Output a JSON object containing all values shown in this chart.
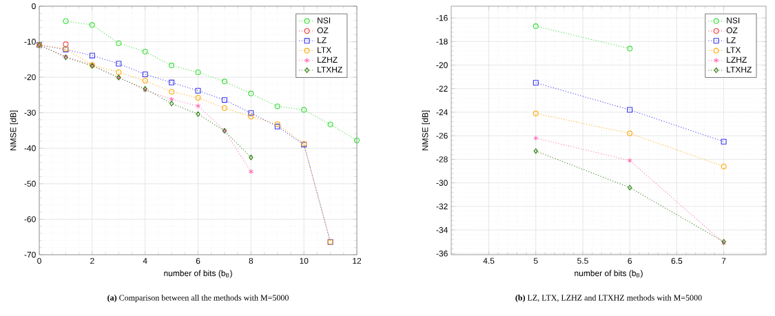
{
  "chart_data": [
    {
      "type": "line",
      "title": "**(a)** Comparison between all the methods with M=5000",
      "xlabel": "number of bits (b$_{B}$)",
      "ylabel": "NMSE [dB]",
      "x": [
        0,
        1,
        2,
        3,
        4,
        5,
        6,
        7,
        8,
        9,
        10,
        11,
        12
      ],
      "series": [
        {
          "name": "NSI",
          "color": "#33dd33",
          "marker": "circle",
          "values": [
            null,
            -4.2,
            -5.3,
            -10.4,
            -12.8,
            -16.7,
            -18.6,
            -21.2,
            -24.6,
            -28.2,
            -29.2,
            -33.3,
            -37.8
          ]
        },
        {
          "name": "OZ",
          "color": "#ee3333",
          "marker": "circle",
          "values": [
            null,
            -10.7,
            null,
            null,
            null,
            null,
            null,
            null,
            null,
            null,
            null,
            null,
            null
          ]
        },
        {
          "name": "LZ",
          "color": "#3333ee",
          "marker": "square",
          "values": [
            -10.9,
            -12.2,
            -13.9,
            -16.2,
            -19.2,
            -21.5,
            -23.8,
            -26.4,
            -30.1,
            -33.9,
            -39.0,
            -66.4,
            null
          ]
        },
        {
          "name": "LTX",
          "color": "#ffa500",
          "marker": "circle",
          "values": [
            -10.9,
            -12.0,
            -16.6,
            -18.6,
            -21.0,
            -24.1,
            -25.8,
            -28.7,
            -31.1,
            -33.2,
            -38.8,
            -66.4,
            null
          ]
        },
        {
          "name": "LZHZ",
          "color": "#ff69b4",
          "marker": "cross",
          "values": [
            -10.9,
            -14.2,
            -16.6,
            -20.1,
            -23.6,
            -26.2,
            -28.1,
            -35.0,
            -46.6,
            null,
            null,
            null,
            null
          ]
        },
        {
          "name": "LTXHZ",
          "color": "#227700",
          "marker": "diamond",
          "values": [
            -10.9,
            -14.4,
            -16.8,
            -20.1,
            -23.3,
            -27.4,
            -30.4,
            -35.1,
            -42.6,
            null,
            null,
            null,
            null
          ]
        }
      ],
      "xlim": [
        0,
        12
      ],
      "ylim": [
        -70,
        0
      ],
      "xticks": [
        0,
        2,
        4,
        6,
        8,
        10,
        12
      ],
      "yticks": [
        -70,
        -60,
        -50,
        -40,
        -30,
        -20,
        -10,
        0
      ],
      "grid": true,
      "legend": "top right",
      "line_style": "dotted"
    },
    {
      "type": "line",
      "title": "**(b)** LZ, LTX, LZHZ and LTXHZ methods with M=5000",
      "xlabel": "number of bits (b$_{B}$)",
      "ylabel": "NMSE [dB]",
      "x": [
        5,
        6,
        7
      ],
      "series": [
        {
          "name": "NSI",
          "color": "#33dd33",
          "marker": "circle",
          "values": [
            -16.7,
            -18.6,
            null
          ]
        },
        {
          "name": "OZ",
          "color": "#ee3333",
          "marker": "circle",
          "values": [
            null,
            null,
            null
          ]
        },
        {
          "name": "LZ",
          "color": "#3333ee",
          "marker": "square",
          "values": [
            -21.5,
            -23.8,
            -26.5
          ]
        },
        {
          "name": "LTX",
          "color": "#ffa500",
          "marker": "circle",
          "values": [
            -24.1,
            -25.8,
            -28.6
          ]
        },
        {
          "name": "LZHZ",
          "color": "#ff69b4",
          "marker": "cross",
          "values": [
            -26.2,
            -28.1,
            -35.1
          ]
        },
        {
          "name": "LTXHZ",
          "color": "#227700",
          "marker": "diamond",
          "values": [
            -27.3,
            -30.4,
            -35.0
          ]
        }
      ],
      "xlim": [
        4.1,
        7.45
      ],
      "ylim": [
        -36.1,
        -15
      ],
      "xticks": [
        4.5,
        5,
        5.5,
        6,
        6.5,
        7
      ],
      "yticks": [
        -36,
        -34,
        -32,
        -30,
        -28,
        -26,
        -24,
        -22,
        -20,
        -18,
        -16
      ],
      "grid": true,
      "legend": "top right",
      "line_style": "dotted"
    }
  ]
}
